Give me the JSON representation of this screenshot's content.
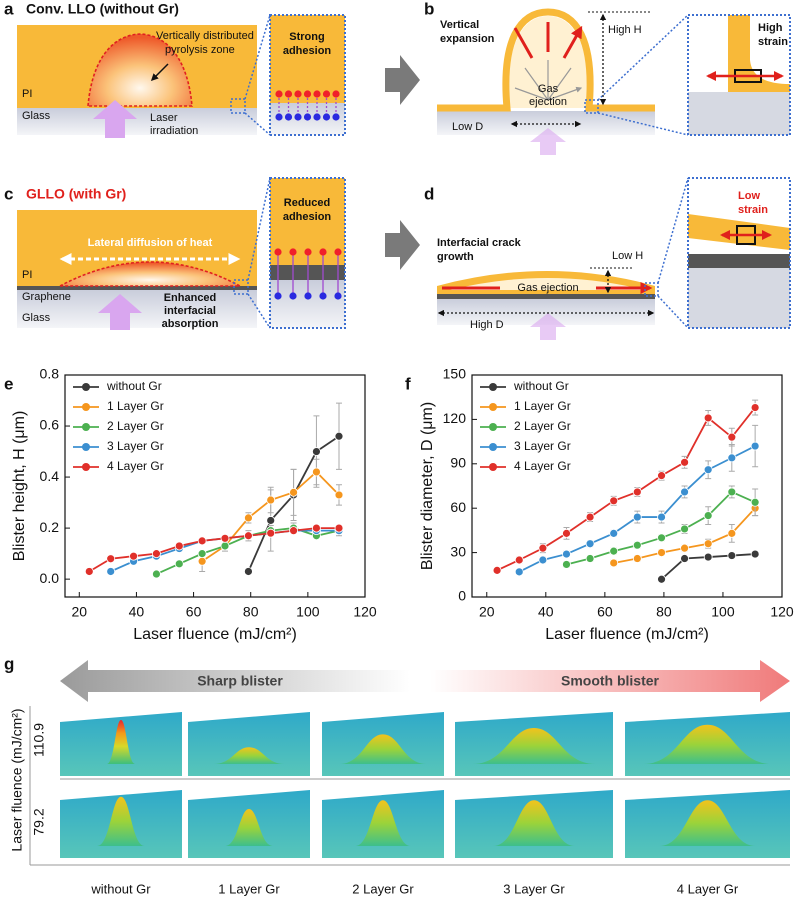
{
  "panel_labels": [
    "a",
    "b",
    "c",
    "d",
    "e",
    "f",
    "g"
  ],
  "diagrams": {
    "a": {
      "title": "Conv. LLO (without Gr)",
      "zone": [
        "Vertically distributed",
        "pyrolysis zone"
      ],
      "pi": "PI",
      "glass": "Glass",
      "laser": [
        "Laser",
        "irradiation"
      ],
      "inset": [
        "Strong",
        "adhesion"
      ]
    },
    "b": {
      "expansion": [
        "Vertical",
        "expansion"
      ],
      "height": "High H",
      "gas": [
        "Gas",
        "ejection"
      ],
      "diameter": "Low D",
      "inset": [
        "High",
        "strain"
      ]
    },
    "c": {
      "title": "GLLO (with Gr)",
      "diffusion": "Lateral diffusion of heat",
      "pi": "PI",
      "graphene": "Graphene",
      "glass": "Glass",
      "absorption": [
        "Enhanced",
        "interfacial",
        "absorption"
      ],
      "inset": [
        "Reduced",
        "adhesion"
      ]
    },
    "d": {
      "crack": [
        "Interfacial crack",
        "growth"
      ],
      "height": "Low H",
      "gas": "Gas ejection",
      "diameter": "High D",
      "inset": [
        "Low",
        "strain"
      ]
    }
  },
  "chart_data": [
    {
      "type": "line",
      "y_label": "Blister height, H (μm)",
      "x_label": "Laser fluence (mJ/cm²)",
      "xlim": [
        15,
        120
      ],
      "xticks": [
        20,
        40,
        60,
        80,
        100,
        120
      ],
      "ylim": [
        -0.07,
        0.8
      ],
      "yticks": [
        {
          "value": 0,
          "label": "0.0"
        },
        {
          "value": 0.2,
          "label": "0.2"
        },
        {
          "value": 0.4,
          "label": "0.4"
        },
        {
          "value": 0.6,
          "label": "0.6"
        },
        {
          "value": 0.8,
          "label": "0.8"
        }
      ],
      "legend": "upper left",
      "series": [
        {
          "name": "without Gr",
          "color": "#3a3a3a",
          "x": [
            79.2,
            87,
            95,
            103,
            110.9
          ],
          "values": [
            0.03,
            0.23,
            0.33,
            0.5,
            0.56
          ],
          "errors": [
            0.01,
            0.12,
            0.1,
            0.14,
            0.13
          ]
        },
        {
          "name": "1 Layer Gr",
          "color": "#f5961e",
          "x": [
            63,
            71,
            79.2,
            87,
            95,
            103,
            110.9
          ],
          "values": [
            0.07,
            0.13,
            0.24,
            0.31,
            0.34,
            0.42,
            0.33
          ],
          "errors": [
            0.04,
            0.02,
            0.02,
            0.05,
            0.09,
            0.05,
            0.04
          ]
        },
        {
          "name": "2 Layer Gr",
          "color": "#4cb050",
          "x": [
            47,
            55,
            63,
            71,
            79.2,
            87,
            95,
            103,
            110.9
          ],
          "values": [
            0.02,
            0.06,
            0.1,
            0.13,
            0.17,
            0.19,
            0.2,
            0.17,
            0.19
          ],
          "errors": [
            0.01,
            0.01,
            0.01,
            0.01,
            0.02,
            0.02,
            0.02,
            0.01,
            0.02
          ]
        },
        {
          "name": "3 Layer Gr",
          "color": "#3b8fd0",
          "x": [
            31,
            39,
            47,
            55,
            63,
            71,
            79.2,
            87,
            95,
            103,
            110.9
          ],
          "values": [
            0.03,
            0.07,
            0.09,
            0.12,
            0.15,
            0.16,
            0.17,
            0.18,
            0.19,
            0.19,
            0.19
          ],
          "errors": [
            0.01,
            0.01,
            0.01,
            0.01,
            0.01,
            0.01,
            0.01,
            0.01,
            0.01,
            0.01,
            0.01
          ]
        },
        {
          "name": "4 Layer Gr",
          "color": "#e0302a",
          "x": [
            23.5,
            31,
            39,
            47,
            55,
            63,
            71,
            79.2,
            87,
            95,
            103,
            110.9
          ],
          "values": [
            0.03,
            0.08,
            0.09,
            0.1,
            0.13,
            0.15,
            0.16,
            0.17,
            0.18,
            0.19,
            0.2,
            0.2
          ],
          "errors": [
            0.01,
            0.01,
            0.01,
            0.01,
            0.01,
            0.01,
            0.01,
            0.01,
            0.01,
            0.01,
            0.01,
            0.01
          ]
        }
      ]
    },
    {
      "type": "line",
      "y_label": "Blister diameter, D (μm)",
      "x_label": "Laser fluence (mJ/cm²)",
      "xlim": [
        15,
        120
      ],
      "xticks": [
        20,
        40,
        60,
        80,
        100,
        120
      ],
      "ylim": [
        0,
        150
      ],
      "yticks": [
        0,
        30,
        60,
        90,
        120,
        150
      ],
      "legend": "upper left",
      "series": [
        {
          "name": "without Gr",
          "color": "#3a3a3a",
          "x": [
            79.2,
            87,
            95,
            103,
            110.9
          ],
          "values": [
            12,
            26,
            27,
            28,
            29
          ],
          "errors": [
            1,
            1,
            1,
            1,
            1
          ]
        },
        {
          "name": "1 Layer Gr",
          "color": "#f5961e",
          "x": [
            63,
            71,
            79.2,
            87,
            95,
            103,
            110.9
          ],
          "values": [
            23,
            26,
            30,
            33,
            36,
            43,
            60
          ],
          "errors": [
            2,
            2,
            2,
            2,
            3,
            6,
            5
          ]
        },
        {
          "name": "2 Layer Gr",
          "color": "#4cb050",
          "x": [
            47,
            55,
            63,
            71,
            79.2,
            87,
            95,
            103,
            110.9
          ],
          "values": [
            22,
            26,
            31,
            35,
            40,
            46,
            55,
            71,
            64
          ],
          "errors": [
            2,
            2,
            2,
            2,
            2,
            3,
            6,
            4,
            9
          ]
        },
        {
          "name": "3 Layer Gr",
          "color": "#3b8fd0",
          "x": [
            31,
            39,
            47,
            55,
            63,
            71,
            79.2,
            87,
            95,
            103,
            110.9
          ],
          "values": [
            17,
            25,
            29,
            36,
            43,
            54,
            54,
            71,
            86,
            94,
            102
          ],
          "errors": [
            1,
            2,
            2,
            2,
            2,
            4,
            4,
            4,
            6,
            9,
            14
          ]
        },
        {
          "name": "4 Layer Gr",
          "color": "#e0302a",
          "x": [
            23.5,
            31,
            39,
            47,
            55,
            63,
            71,
            79.2,
            87,
            95,
            103,
            110.9
          ],
          "values": [
            18,
            25,
            33,
            43,
            54,
            65,
            71,
            82,
            91,
            121,
            108,
            128
          ],
          "errors": [
            1,
            2,
            3,
            4,
            3,
            3,
            3,
            3,
            4,
            5,
            6,
            5
          ]
        }
      ]
    }
  ],
  "panel_g": {
    "sharp": "Sharp blister",
    "smooth": "Smooth blister",
    "axis": "Laser fluence (mJ/cm²)",
    "rows": [
      "110.9",
      "79.2"
    ],
    "columns": [
      "without Gr",
      "1 Layer Gr",
      "2 Layer Gr",
      "3 Layer Gr",
      "4 Layer Gr"
    ]
  }
}
